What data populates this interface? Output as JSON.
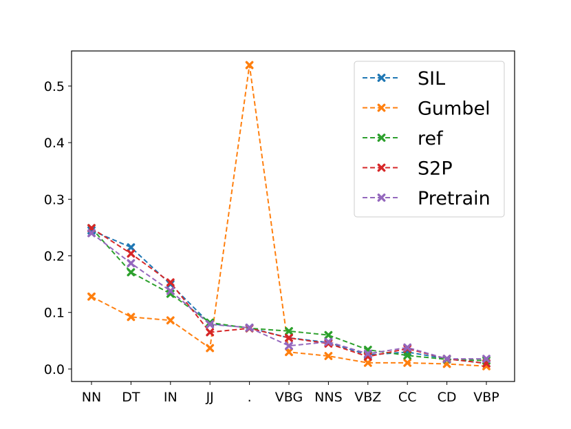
{
  "chart_data": {
    "type": "line",
    "title": "",
    "xlabel": "",
    "ylabel": "",
    "categories": [
      "NN",
      "DT",
      "IN",
      "JJ",
      ".",
      "VBG",
      "NNS",
      "VBZ",
      "CC",
      "CD",
      "VBP"
    ],
    "yticks": [
      "0.0",
      "0.1",
      "0.2",
      "0.3",
      "0.4",
      "0.5"
    ],
    "ytick_values": [
      0.0,
      0.1,
      0.2,
      0.3,
      0.4,
      0.5
    ],
    "ylim": [
      -0.022,
      0.562
    ],
    "grid": false,
    "legend_position": "top-right",
    "line_style": "dashed",
    "marker": "x",
    "series": [
      {
        "name": "SIL",
        "color": "#1f77b4",
        "values": [
          0.245,
          0.215,
          0.15,
          0.08,
          0.073,
          0.055,
          0.047,
          0.025,
          0.03,
          0.018,
          0.01
        ]
      },
      {
        "name": "Gumbel",
        "color": "#ff7f0e",
        "values": [
          0.128,
          0.092,
          0.086,
          0.037,
          0.537,
          0.03,
          0.023,
          0.011,
          0.011,
          0.009,
          0.005
        ]
      },
      {
        "name": "ref",
        "color": "#2ca02c",
        "values": [
          0.249,
          0.171,
          0.133,
          0.082,
          0.072,
          0.067,
          0.06,
          0.034,
          0.024,
          0.017,
          0.015
        ]
      },
      {
        "name": "S2P",
        "color": "#d62728",
        "values": [
          0.249,
          0.204,
          0.153,
          0.065,
          0.072,
          0.055,
          0.045,
          0.022,
          0.036,
          0.018,
          0.01
        ]
      },
      {
        "name": "Pretrain",
        "color": "#9467bd",
        "values": [
          0.24,
          0.187,
          0.138,
          0.079,
          0.073,
          0.041,
          0.048,
          0.027,
          0.038,
          0.018,
          0.018
        ]
      }
    ]
  }
}
